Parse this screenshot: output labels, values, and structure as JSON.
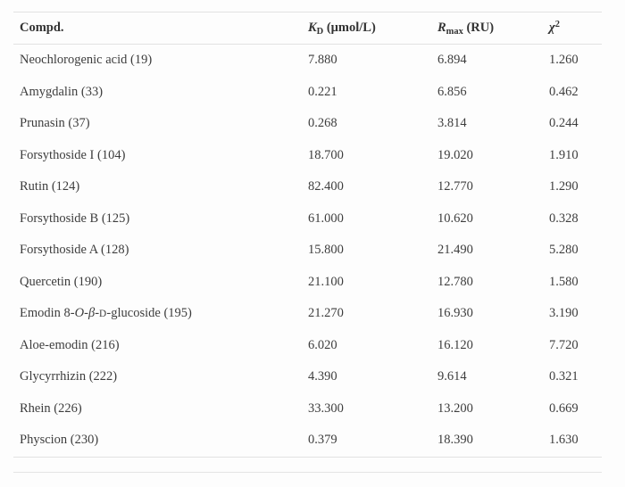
{
  "table": {
    "columns": [
      {
        "id": "compd",
        "label": "Compd.",
        "label_html": "Compd."
      },
      {
        "id": "kd",
        "label": "KD (μmol/L)",
        "label_html": "<i>K</i><sub>D</sub> (μmol/L)"
      },
      {
        "id": "rmax",
        "label": "Rmax (RU)",
        "label_html": "<i>R</i><sub>max</sub> (RU)"
      },
      {
        "id": "chi2",
        "label": "χ2",
        "label_html": "<i>χ</i><sup>2</sup>"
      }
    ],
    "rows": [
      {
        "name": "Neochlorogenic acid (19)",
        "kd": "7.880",
        "rmax": "6.894",
        "chi2": "1.260"
      },
      {
        "name": "Amygdalin (33)",
        "kd": "0.221",
        "rmax": "6.856",
        "chi2": "0.462"
      },
      {
        "name": "Prunasin (37)",
        "kd": "0.268",
        "rmax": "3.814",
        "chi2": "0.244"
      },
      {
        "name": "Forsythoside I (104)",
        "kd": "18.700",
        "rmax": "19.020",
        "chi2": "1.910"
      },
      {
        "name": "Rutin (124)",
        "kd": "82.400",
        "rmax": "12.770",
        "chi2": "1.290"
      },
      {
        "name": "Forsythoside B (125)",
        "kd": "61.000",
        "rmax": "10.620",
        "chi2": "0.328"
      },
      {
        "name": "Forsythoside A (128)",
        "kd": "15.800",
        "rmax": "21.490",
        "chi2": "5.280"
      },
      {
        "name": "Quercetin (190)",
        "kd": "21.100",
        "rmax": "12.780",
        "chi2": "1.580"
      },
      {
        "name": "Emodin 8-O-β-D-glucoside (195)",
        "name_html": "Emodin 8-<i>O</i>-<i>β</i>-<span class=\"smallcap\">D</span>-glucoside (195)",
        "kd": "21.270",
        "rmax": "16.930",
        "chi2": "3.190"
      },
      {
        "name": "Aloe-emodin (216)",
        "kd": "6.020",
        "rmax": "16.120",
        "chi2": "7.720"
      },
      {
        "name": "Glycyrrhizin (222)",
        "kd": "4.390",
        "rmax": "9.614",
        "chi2": "0.321"
      },
      {
        "name": "Rhein (226)",
        "kd": "33.300",
        "rmax": "13.200",
        "chi2": "0.669"
      },
      {
        "name": "Physcion (230)",
        "kd": "0.379",
        "rmax": "18.390",
        "chi2": "1.630"
      }
    ]
  },
  "colors": {
    "text": "#3d3d3d",
    "header_text": "#333333",
    "rule": "#e2e2e2",
    "background": "#fdfdfd"
  }
}
